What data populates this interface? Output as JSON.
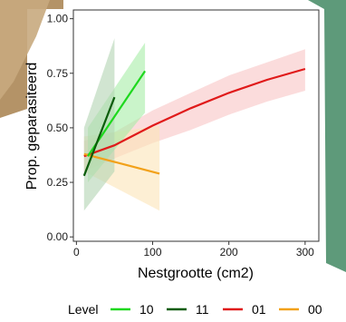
{
  "chart_data": {
    "type": "line",
    "xlabel": "Nestgrootte (cm2)",
    "ylabel": "Prop. geparasiteerd",
    "xlim": [
      -4,
      318
    ],
    "ylim": [
      -0.02,
      1.04
    ],
    "x_ticks": [
      0,
      100,
      200,
      300
    ],
    "y_ticks": [
      0.0,
      0.25,
      0.5,
      0.75,
      1.0
    ],
    "y_tick_labels": [
      "0.00",
      "0.25",
      "0.50",
      "0.75",
      "1.00"
    ],
    "grid": false,
    "legend": {
      "title": "Level",
      "position": "bottom",
      "entries": [
        "10",
        "11",
        "01",
        "00"
      ]
    },
    "series": [
      {
        "name": "10",
        "color": "#1ed81e",
        "band_color": "#a6eda6",
        "x": [
          15,
          90
        ],
        "y": [
          0.37,
          0.76
        ],
        "ci_low": [
          0.25,
          0.57
        ],
        "ci_high": [
          0.5,
          0.89
        ]
      },
      {
        "name": "11",
        "color": "#0a5c0a",
        "band_color": "#b3d4b3",
        "x": [
          10,
          50
        ],
        "y": [
          0.28,
          0.64
        ],
        "ci_low": [
          0.12,
          0.3
        ],
        "ci_high": [
          0.5,
          0.91
        ]
      },
      {
        "name": "01",
        "color": "#e01a1a",
        "band_color": "#f8c4c4",
        "x": [
          10,
          50,
          100,
          150,
          200,
          250,
          300
        ],
        "y": [
          0.37,
          0.42,
          0.51,
          0.59,
          0.66,
          0.72,
          0.77
        ],
        "ci_low": [
          0.3,
          0.36,
          0.43,
          0.49,
          0.56,
          0.62,
          0.67
        ],
        "ci_high": [
          0.44,
          0.48,
          0.58,
          0.66,
          0.74,
          0.8,
          0.86
        ]
      },
      {
        "name": "00",
        "color": "#f2a11a",
        "band_color": "#fbe4b8",
        "x": [
          10,
          109
        ],
        "y": [
          0.38,
          0.29
        ],
        "ci_low": [
          0.3,
          0.12
        ],
        "ci_high": [
          0.46,
          0.51
        ]
      }
    ]
  },
  "colors": {
    "axis": "#333333",
    "backdrop_left": "#b08d5f",
    "backdrop_right": "#5e9a7a"
  }
}
